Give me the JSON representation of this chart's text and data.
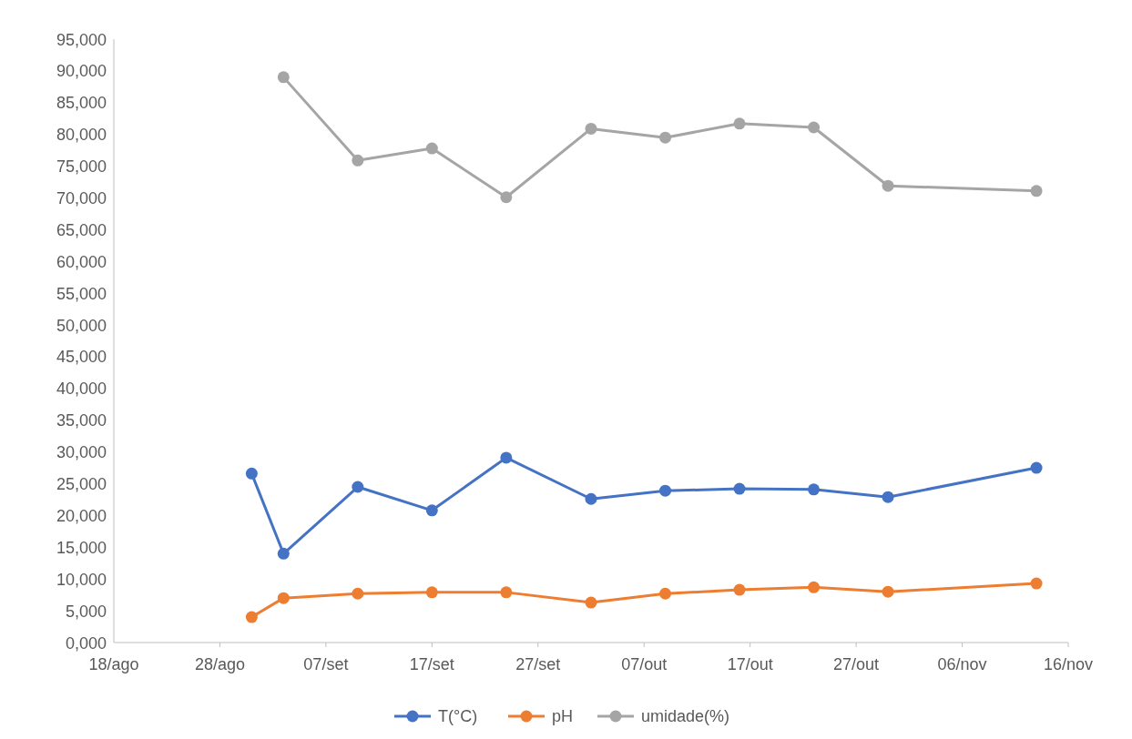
{
  "chart_data": {
    "type": "line",
    "x": [
      "--08-31",
      "--09-03",
      "--09-10",
      "--09-17",
      "--09-24",
      "--10-02",
      "--10-09",
      "--10-16",
      "--10-23",
      "--10-30",
      "--11-13"
    ],
    "series": [
      {
        "name": "T(°C)",
        "color": "#4472c4",
        "values": [
          26600,
          14000,
          24500,
          20800,
          29100,
          22600,
          23900,
          24200,
          24100,
          22900,
          27500
        ]
      },
      {
        "name": "pH",
        "color": "#ed7d31",
        "values": [
          4000,
          7000,
          7700,
          7900,
          7900,
          6300,
          7700,
          8300,
          8700,
          8000,
          9300
        ]
      },
      {
        "name": "umidade(%)",
        "color": "#a5a5a5",
        "values": [
          null,
          89000,
          75900,
          77800,
          70100,
          80900,
          79500,
          81700,
          81100,
          71900,
          71100
        ]
      }
    ],
    "xlim": [
      "--08-18",
      "--11-16"
    ],
    "xticks": [
      {
        "value": "--08-18",
        "label": "18/ago"
      },
      {
        "value": "--08-28",
        "label": "28/ago"
      },
      {
        "value": "--09-07",
        "label": "07/set"
      },
      {
        "value": "--09-17",
        "label": "17/set"
      },
      {
        "value": "--09-27",
        "label": "27/set"
      },
      {
        "value": "--10-07",
        "label": "07/out"
      },
      {
        "value": "--10-17",
        "label": "17/out"
      },
      {
        "value": "--10-27",
        "label": "27/out"
      },
      {
        "value": "--11-06",
        "label": "06/nov"
      },
      {
        "value": "--11-16",
        "label": "16/nov"
      }
    ],
    "ylim": [
      0,
      95000
    ],
    "yticks": [
      {
        "value": 0,
        "label": "0,000"
      },
      {
        "value": 5000,
        "label": "5,000"
      },
      {
        "value": 10000,
        "label": "10,000"
      },
      {
        "value": 15000,
        "label": "15,000"
      },
      {
        "value": 20000,
        "label": "20,000"
      },
      {
        "value": 25000,
        "label": "25,000"
      },
      {
        "value": 30000,
        "label": "30,000"
      },
      {
        "value": 35000,
        "label": "35,000"
      },
      {
        "value": 40000,
        "label": "40,000"
      },
      {
        "value": 45000,
        "label": "45,000"
      },
      {
        "value": 50000,
        "label": "50,000"
      },
      {
        "value": 55000,
        "label": "55,000"
      },
      {
        "value": 60000,
        "label": "60,000"
      },
      {
        "value": 65000,
        "label": "65,000"
      },
      {
        "value": 70000,
        "label": "70,000"
      },
      {
        "value": 75000,
        "label": "75,000"
      },
      {
        "value": 80000,
        "label": "80,000"
      },
      {
        "value": 85000,
        "label": "85,000"
      },
      {
        "value": 90000,
        "label": "90,000"
      },
      {
        "value": 95000,
        "label": "95,000"
      }
    ],
    "grid": false,
    "legend": "bottom",
    "marker": "circle",
    "line_style": "solid"
  }
}
